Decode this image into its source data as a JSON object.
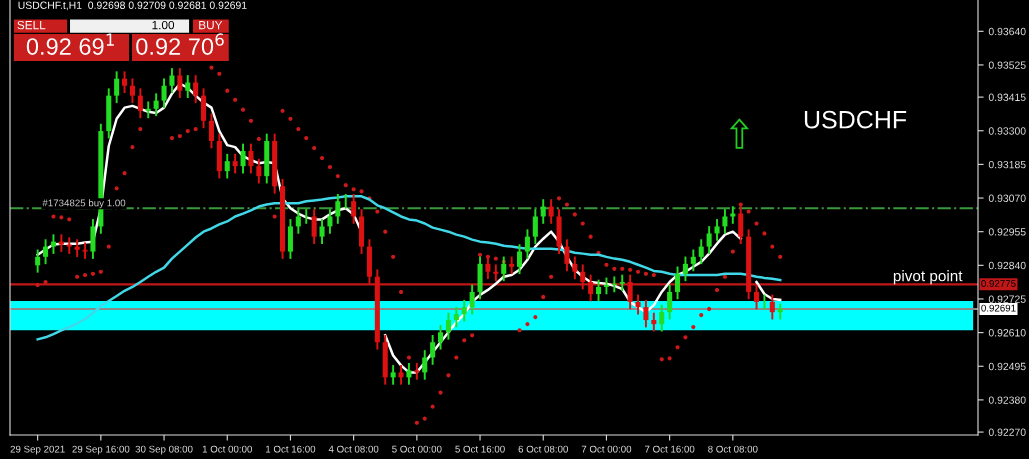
{
  "chart_data": {
    "type": "candlestick",
    "title": "USDCHF.t,H1  0.92698 0.92709 0.92681 0.92691",
    "categories": [
      "29 Sep 2021",
      null,
      null,
      null,
      null,
      null,
      null,
      null,
      "29 Sep 16:00",
      null,
      null,
      null,
      null,
      null,
      null,
      null,
      "30 Sep 08:00",
      null,
      null,
      null,
      null,
      null,
      null,
      null,
      "1 Oct 00:00",
      null,
      null,
      null,
      null,
      null,
      null,
      null,
      "1 Oct 16:00",
      null,
      null,
      null,
      null,
      null,
      null,
      null,
      "4 Oct 08:00",
      null,
      null,
      null,
      null,
      null,
      null,
      null,
      "5 Oct 00:00",
      null,
      null,
      null,
      null,
      null,
      null,
      null,
      "5 Oct 16:00",
      null,
      null,
      null,
      null,
      null,
      null,
      null,
      "6 Oct 08:00",
      null,
      null,
      null,
      null,
      null,
      null,
      null,
      "7 Oct 00:00",
      null,
      null,
      null,
      null,
      null,
      null,
      null,
      "7 Oct 16:00",
      null,
      null,
      null,
      null,
      null,
      null,
      null,
      "8 Oct 08:00",
      null,
      null,
      null,
      null,
      null,
      null
    ],
    "ohlc": [
      [
        0.9284,
        0.92894,
        0.92815,
        0.92869
      ],
      [
        0.92869,
        0.92929,
        0.92844,
        0.92904
      ],
      [
        0.92904,
        0.92946,
        0.92879,
        0.92921
      ],
      [
        0.92921,
        0.92946,
        0.92886,
        0.92911
      ],
      [
        0.92911,
        0.92936,
        0.92879,
        0.92904
      ],
      [
        0.92904,
        0.92929,
        0.92868,
        0.92893
      ],
      [
        0.92893,
        0.92918,
        0.92862,
        0.92887
      ],
      [
        0.92887,
        0.92998,
        0.92862,
        0.92973
      ],
      [
        0.92973,
        0.93324,
        0.92948,
        0.93299
      ],
      [
        0.93299,
        0.93445,
        0.93274,
        0.9342
      ],
      [
        0.9342,
        0.93503,
        0.93395,
        0.93478
      ],
      [
        0.93478,
        0.93503,
        0.93429,
        0.93454
      ],
      [
        0.93454,
        0.93479,
        0.93395,
        0.9342
      ],
      [
        0.9342,
        0.93445,
        0.93343,
        0.93368
      ],
      [
        0.93368,
        0.934,
        0.93343,
        0.93375
      ],
      [
        0.93375,
        0.93428,
        0.9335,
        0.93403
      ],
      [
        0.93403,
        0.93479,
        0.93378,
        0.93454
      ],
      [
        0.93454,
        0.93514,
        0.93429,
        0.93489
      ],
      [
        0.93489,
        0.93514,
        0.93412,
        0.93437
      ],
      [
        0.93437,
        0.9349,
        0.93412,
        0.93465
      ],
      [
        0.93465,
        0.9349,
        0.93395,
        0.9342
      ],
      [
        0.9342,
        0.93445,
        0.93309,
        0.93334
      ],
      [
        0.93334,
        0.93359,
        0.9324,
        0.93265
      ],
      [
        0.93265,
        0.9329,
        0.93137,
        0.93162
      ],
      [
        0.93162,
        0.93221,
        0.93137,
        0.93196
      ],
      [
        0.93196,
        0.93221,
        0.93154,
        0.93179
      ],
      [
        0.93179,
        0.93256,
        0.93154,
        0.93231
      ],
      [
        0.93231,
        0.93256,
        0.93154,
        0.93179
      ],
      [
        0.93179,
        0.93204,
        0.9312,
        0.93145
      ],
      [
        0.93145,
        0.9329,
        0.9312,
        0.93265
      ],
      [
        0.93265,
        0.9329,
        0.93085,
        0.9311
      ],
      [
        0.9311,
        0.93135,
        0.92862,
        0.92887
      ],
      [
        0.92887,
        0.92998,
        0.92862,
        0.92973
      ],
      [
        0.92973,
        0.93032,
        0.92948,
        0.93007
      ],
      [
        0.93007,
        0.93032,
        0.92982,
        0.93007
      ],
      [
        0.93007,
        0.93032,
        0.92913,
        0.92938
      ],
      [
        0.92938,
        0.92998,
        0.92913,
        0.92973
      ],
      [
        0.92973,
        0.93032,
        0.92948,
        0.93007
      ],
      [
        0.93007,
        0.93084,
        0.92982,
        0.93059
      ],
      [
        0.93059,
        0.93084,
        0.93034,
        0.93059
      ],
      [
        0.93059,
        0.93084,
        0.92982,
        0.93007
      ],
      [
        0.93007,
        0.93032,
        0.92879,
        0.92904
      ],
      [
        0.92904,
        0.92929,
        0.92776,
        0.92801
      ],
      [
        0.92801,
        0.92826,
        0.92552,
        0.92577
      ],
      [
        0.92577,
        0.92602,
        0.92432,
        0.92457
      ],
      [
        0.92457,
        0.92499,
        0.92432,
        0.92474
      ],
      [
        0.92474,
        0.92499,
        0.92432,
        0.92457
      ],
      [
        0.92457,
        0.92506,
        0.92432,
        0.92481
      ],
      [
        0.92481,
        0.92506,
        0.92449,
        0.92474
      ],
      [
        0.92474,
        0.9255,
        0.92449,
        0.92525
      ],
      [
        0.92525,
        0.92602,
        0.925,
        0.92577
      ],
      [
        0.92577,
        0.92636,
        0.92552,
        0.92611
      ],
      [
        0.92611,
        0.92678,
        0.92586,
        0.92653
      ],
      [
        0.92653,
        0.92698,
        0.92628,
        0.92673
      ],
      [
        0.92673,
        0.92722,
        0.92648,
        0.92697
      ],
      [
        0.92697,
        0.92774,
        0.92672,
        0.92749
      ],
      [
        0.92749,
        0.9287,
        0.92724,
        0.92845
      ],
      [
        0.92845,
        0.9287,
        0.92793,
        0.92818
      ],
      [
        0.92818,
        0.92843,
        0.92786,
        0.92811
      ],
      [
        0.92811,
        0.9287,
        0.92786,
        0.92845
      ],
      [
        0.92845,
        0.9287,
        0.9281,
        0.92835
      ],
      [
        0.92835,
        0.92912,
        0.9281,
        0.92887
      ],
      [
        0.92887,
        0.92963,
        0.92862,
        0.92938
      ],
      [
        0.92938,
        0.93032,
        0.92913,
        0.93007
      ],
      [
        0.93007,
        0.93066,
        0.92982,
        0.93041
      ],
      [
        0.93041,
        0.93066,
        0.92982,
        0.93007
      ],
      [
        0.93007,
        0.93032,
        0.92879,
        0.92904
      ],
      [
        0.92904,
        0.92929,
        0.9282,
        0.92845
      ],
      [
        0.92845,
        0.9287,
        0.92793,
        0.92818
      ],
      [
        0.92818,
        0.92843,
        0.92758,
        0.92783
      ],
      [
        0.92783,
        0.92808,
        0.92717,
        0.92742
      ],
      [
        0.92742,
        0.92791,
        0.92717,
        0.92766
      ],
      [
        0.92766,
        0.92798,
        0.92741,
        0.92773
      ],
      [
        0.92773,
        0.92802,
        0.92748,
        0.92777
      ],
      [
        0.92777,
        0.92808,
        0.92752,
        0.92783
      ],
      [
        0.92783,
        0.92808,
        0.9269,
        0.92715
      ],
      [
        0.92715,
        0.9274,
        0.92672,
        0.92697
      ],
      [
        0.92697,
        0.92722,
        0.92628,
        0.92653
      ],
      [
        0.92653,
        0.92678,
        0.92614,
        0.92639
      ],
      [
        0.92639,
        0.92705,
        0.92614,
        0.9268
      ],
      [
        0.9268,
        0.92774,
        0.92655,
        0.92749
      ],
      [
        0.92749,
        0.92836,
        0.92724,
        0.92811
      ],
      [
        0.92811,
        0.9287,
        0.92786,
        0.92845
      ],
      [
        0.92845,
        0.92894,
        0.9282,
        0.92869
      ],
      [
        0.92869,
        0.92929,
        0.92844,
        0.92904
      ],
      [
        0.92904,
        0.92974,
        0.92879,
        0.92949
      ],
      [
        0.92949,
        0.92998,
        0.92924,
        0.92973
      ],
      [
        0.92973,
        0.93032,
        0.92948,
        0.93007
      ],
      [
        0.93007,
        0.93042,
        0.92982,
        0.93017
      ],
      [
        0.93017,
        0.93042,
        0.92913,
        0.92938
      ],
      [
        0.92938,
        0.92963,
        0.92724,
        0.92749
      ],
      [
        0.92749,
        0.92774,
        0.9269,
        0.92715
      ],
      [
        0.92715,
        0.9274,
        0.9269,
        0.92715
      ],
      [
        0.92715,
        0.9274,
        0.92655,
        0.9268
      ],
      [
        0.9268,
        0.92709,
        0.92655,
        0.92691
      ]
    ],
    "colors": [
      "#22dd22",
      "#22dd22",
      "#22dd22",
      "#dd1111",
      "#dd1111",
      "#dd1111",
      "#dd1111",
      "#22dd22",
      "#22dd22",
      "#22dd22",
      "#22dd22",
      "#dd1111",
      "#dd1111",
      "#dd1111",
      "#22dd22",
      "#22dd22",
      "#22dd22",
      "#22dd22",
      "#dd1111",
      "#22dd22",
      "#dd1111",
      "#dd1111",
      "#dd1111",
      "#dd1111",
      "#22dd22",
      "#dd1111",
      "#22dd22",
      "#dd1111",
      "#dd1111",
      "#22dd22",
      "#dd1111",
      "#dd1111",
      "#22dd22",
      "#22dd22",
      "#22dd22",
      "#dd1111",
      "#22dd22",
      "#22dd22",
      "#22dd22",
      "#22dd22",
      "#dd1111",
      "#dd1111",
      "#dd1111",
      "#dd1111",
      "#dd1111",
      "#22dd22",
      "#dd1111",
      "#22dd22",
      "#dd1111",
      "#22dd22",
      "#22dd22",
      "#22dd22",
      "#22dd22",
      "#22dd22",
      "#22dd22",
      "#22dd22",
      "#22dd22",
      "#dd1111",
      "#dd1111",
      "#22dd22",
      "#dd1111",
      "#22dd22",
      "#22dd22",
      "#22dd22",
      "#22dd22",
      "#dd1111",
      "#dd1111",
      "#dd1111",
      "#dd1111",
      "#dd1111",
      "#dd1111",
      "#22dd22",
      "#22dd22",
      "#22dd22",
      "#22dd22",
      "#dd1111",
      "#dd1111",
      "#dd1111",
      "#dd1111",
      "#22dd22",
      "#22dd22",
      "#22dd22",
      "#22dd22",
      "#22dd22",
      "#22dd22",
      "#22dd22",
      "#22dd22",
      "#22dd22",
      "#22dd22",
      "#dd1111",
      "#dd1111",
      "#dd1111",
      "#22dd22",
      "#dd1111",
      "#22dd22"
    ],
    "series": [
      {
        "type": "line",
        "color": "#ffffff",
        "values": [
          0.92876,
          0.92894,
          0.92911,
          0.92914,
          0.92914,
          0.92914,
          0.92918,
          0.92921,
          0.93035,
          0.93248,
          0.93341,
          0.93379,
          0.93385,
          0.93375,
          0.93365,
          0.93361,
          0.93379,
          0.93427,
          0.93461,
          0.93447,
          0.9342,
          0.93396,
          0.93379,
          0.93299,
          0.93251,
          0.93244,
          0.93213,
          0.932,
          0.93189,
          0.93193,
          0.93189,
          0.93069,
          0.93035,
          0.93017,
          0.93004,
          0.92997,
          0.92997,
          0.93014,
          0.93028,
          0.93035,
          0.93014,
          0.92955,
          null,
          null,
          0.92601,
          0.92532,
          0.92498,
          0.92474,
          0.92474,
          0.92508,
          0.92543,
          0.92577,
          0.92611,
          0.92646,
          0.92673,
          0.92715,
          0.92739,
          0.92756,
          0.92777,
          0.92801,
          0.92807,
          0.92825,
          0.92859,
          0.92904,
          0.92931,
          0.92955,
          0.92921,
          0.92869,
          0.92825,
          0.92801,
          0.92783,
          0.9278,
          0.92777,
          0.9277,
          0.92759,
          0.92715,
          0.92697,
          0.9268,
          0.92704,
          0.92749,
          0.92783,
          0.92807,
          0.92818,
          0.92835,
          0.92852,
          0.9288,
          0.92914,
          0.92945,
          0.92955,
          0.92931,
          null,
          0.92783,
          0.92742,
          0.92725,
          0.92722
        ]
      },
      {
        "type": "line",
        "color": "#40d8e8",
        "values": [
          0.92587,
          0.92594,
          0.92605,
          0.92618,
          0.92629,
          0.92642,
          0.92656,
          0.92677,
          0.92701,
          0.92718,
          0.92735,
          0.92753,
          0.92766,
          0.92783,
          0.92801,
          0.92818,
          0.92832,
          0.92863,
          0.92887,
          0.92911,
          0.92935,
          0.92955,
          0.92966,
          0.9298,
          0.9299,
          0.93007,
          0.93017,
          0.93028,
          0.93041,
          0.93048,
          0.93052,
          0.93052,
          0.93052,
          0.93052,
          0.93059,
          0.93062,
          0.93065,
          0.93069,
          0.93072,
          0.93076,
          0.93076,
          0.93076,
          0.93065,
          0.93045,
          0.93035,
          0.93021,
          0.93007,
          0.92997,
          0.92993,
          0.92983,
          0.92969,
          0.92962,
          0.92955,
          0.92945,
          0.92938,
          0.92928,
          0.92921,
          0.92918,
          0.92914,
          0.92907,
          0.92904,
          0.929,
          0.92897,
          0.92897,
          0.92897,
          0.92897,
          0.92894,
          0.9289,
          0.92883,
          0.9288,
          0.92876,
          0.92876,
          0.92869,
          0.92863,
          0.92859,
          0.92852,
          0.92842,
          0.92832,
          0.92821,
          0.92818,
          0.92811,
          0.92807,
          0.92807,
          0.92807,
          0.92807,
          0.92807,
          0.92807,
          0.92811,
          0.92811,
          0.92811,
          0.92807,
          0.92801,
          0.92797,
          0.92794,
          0.9279
        ]
      },
      {
        "type": "scatter",
        "color": "#cc1a1a",
        "marker": "circle",
        "values": [
          0.92773,
          0.92783,
          0.93007,
          0.93004,
          0.92997,
          0.92801,
          0.92807,
          0.92811,
          0.92818,
          0.92904,
          0.93103,
          0.93155,
          0.93244,
          0.93306,
          null,
          null,
          null,
          0.93275,
          0.93282,
          0.93299,
          0.93306,
          null,
          0.93516,
          0.93495,
          0.93437,
          0.93406,
          0.93372,
          0.93334,
          0.93272,
          null,
          0.93007,
          0.93368,
          0.93341,
          0.93306,
          0.93275,
          0.93241,
          0.93207,
          0.93176,
          0.93145,
          0.93114,
          0.931,
          0.93093,
          0.93069,
          0.93024,
          0.92955,
          0.92869,
          0.92749,
          0.92525,
          0.92302,
          0.92316,
          0.92357,
          0.92405,
          0.92464,
          0.92525,
          0.92584,
          0.92601,
          0.92876,
          0.92869,
          0.92863,
          0.92852,
          null,
          0.92618,
          0.92639,
          0.92663,
          0.92732,
          0.92801,
          0.93069,
          0.93048,
          0.93014,
          0.92983,
          0.92938,
          0.92883,
          0.92842,
          0.92828,
          0.92828,
          0.92825,
          0.92818,
          0.92811,
          0.92807,
          0.92519,
          0.92522,
          0.9256,
          0.92594,
          0.92629,
          0.9267,
          0.92691,
          0.92756,
          0.92801,
          0.92887,
          0.93048,
          0.93024,
          0.92983,
          0.92949,
          0.92904,
          0.92869
        ]
      }
    ],
    "ylim": [
      0.9226,
      0.93747
    ],
    "yticks": [
      {
        "value": 0.9364,
        "label": "0.93640"
      },
      {
        "value": 0.93525,
        "label": "0.93525"
      },
      {
        "value": 0.93415,
        "label": "0.93415"
      },
      {
        "value": 0.933,
        "label": "0.93300"
      },
      {
        "value": 0.93185,
        "label": "0.93185"
      },
      {
        "value": 0.9307,
        "label": "0.93070"
      },
      {
        "value": 0.92955,
        "label": "0.92955"
      },
      {
        "value": 0.9284,
        "label": "0.92840"
      },
      {
        "value": 0.92725,
        "label": "0.92725"
      },
      {
        "value": 0.9261,
        "label": "0.92610"
      },
      {
        "value": 0.92495,
        "label": "0.92495"
      },
      {
        "value": 0.9238,
        "label": "0.92380"
      },
      {
        "value": 0.9227,
        "label": "0.92270"
      }
    ],
    "ref_lines": [
      {
        "axis": "y",
        "value": 0.93035,
        "label": "#1734825 buy 1.00",
        "color": "#3a9a3a",
        "line_style": "dashdot"
      },
      {
        "axis": "y",
        "value": 0.92775,
        "label": "pivot point",
        "color": "#c01818",
        "line_style": "solid"
      },
      {
        "axis": "y",
        "value": 0.92691,
        "color": "#8a8a8a",
        "line_style": "solid"
      }
    ],
    "bands": [
      {
        "axis": "y",
        "from": 0.92618,
        "to": 0.92718,
        "color": "#00ffff"
      }
    ],
    "annotations": [
      "USDCHF",
      "SELL",
      "1.00",
      "BUY",
      "0.92 69$^{1}$",
      "0.92 70$^{6}$",
      "0.92775",
      "0.92691"
    ],
    "grid": false,
    "legend": false
  }
}
